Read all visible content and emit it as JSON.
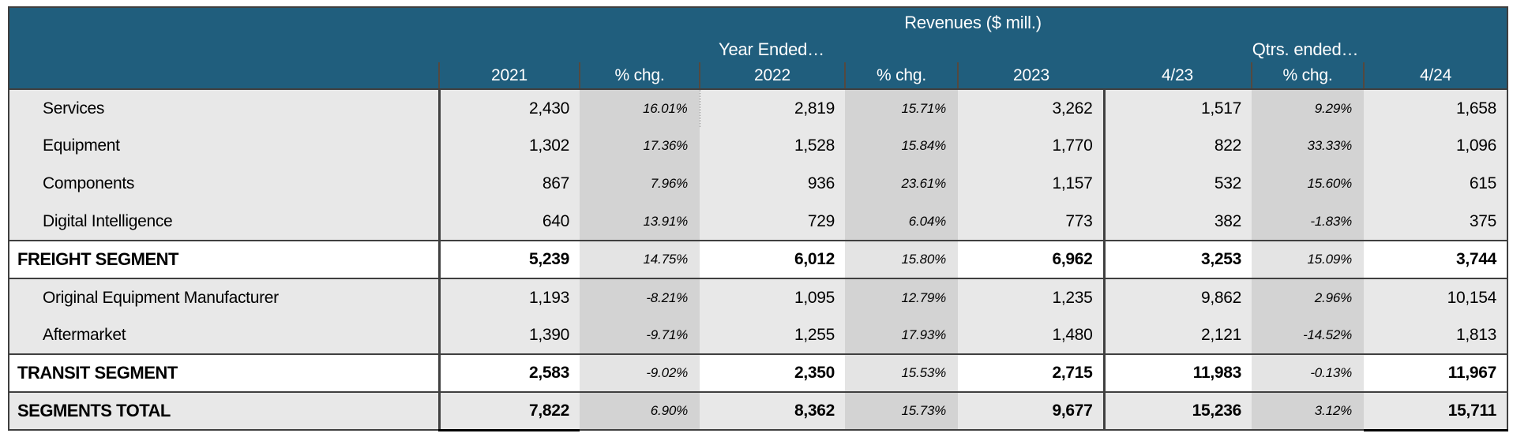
{
  "colors": {
    "header_background": "#205E7D",
    "header_text": "#ffffff",
    "row_light_gray": "#E8E8E8",
    "pct_band_dark": "#D3D3D3",
    "pct_band_light": "#E4E4E4",
    "segment_row_background": "#ffffff",
    "grid_dark_border": "#3f3f3f",
    "header_tick": "#55493f"
  },
  "chart_data": {
    "type": "table",
    "title": "Revenues ($ mill.)",
    "group_headers": {
      "year": "Year Ended…",
      "quarter": "Qtrs. ended…"
    },
    "columns": [
      "",
      "2021",
      "% chg.",
      "2022",
      "% chg.",
      "2023",
      "4/23",
      "% chg.",
      "4/24"
    ],
    "rows": [
      {
        "label": "Services",
        "type": "detail",
        "values": [
          "2,430",
          "16.01%",
          "2,819",
          "15.71%",
          "3,262",
          "1,517",
          "9.29%",
          "1,658"
        ]
      },
      {
        "label": "Equipment",
        "type": "detail",
        "values": [
          "1,302",
          "17.36%",
          "1,528",
          "15.84%",
          "1,770",
          "822",
          "33.33%",
          "1,096"
        ]
      },
      {
        "label": "Components",
        "type": "detail",
        "values": [
          "867",
          "7.96%",
          "936",
          "23.61%",
          "1,157",
          "532",
          "15.60%",
          "615"
        ]
      },
      {
        "label": "Digital Intelligence",
        "type": "detail",
        "values": [
          "640",
          "13.91%",
          "729",
          "6.04%",
          "773",
          "382",
          "-1.83%",
          "375"
        ]
      },
      {
        "label": "FREIGHT SEGMENT",
        "type": "segment",
        "values": [
          "5,239",
          "14.75%",
          "6,012",
          "15.80%",
          "6,962",
          "3,253",
          "15.09%",
          "3,744"
        ]
      },
      {
        "label": "Original Equipment Manufacturer",
        "type": "detail",
        "values": [
          "1,193",
          "-8.21%",
          "1,095",
          "12.79%",
          "1,235",
          "9,862",
          "2.96%",
          "10,154"
        ]
      },
      {
        "label": "Aftermarket",
        "type": "detail",
        "values": [
          "1,390",
          "-9.71%",
          "1,255",
          "17.93%",
          "1,480",
          "2,121",
          "-14.52%",
          "1,813"
        ]
      },
      {
        "label": "TRANSIT SEGMENT",
        "type": "segment",
        "values": [
          "2,583",
          "-9.02%",
          "2,350",
          "15.53%",
          "2,715",
          "11,983",
          "-0.13%",
          "11,967"
        ]
      },
      {
        "label": "SEGMENTS TOTAL",
        "type": "total",
        "values": [
          "7,822",
          "6.90%",
          "8,362",
          "15.73%",
          "9,677",
          "15,236",
          "3.12%",
          "15,711"
        ]
      }
    ]
  }
}
